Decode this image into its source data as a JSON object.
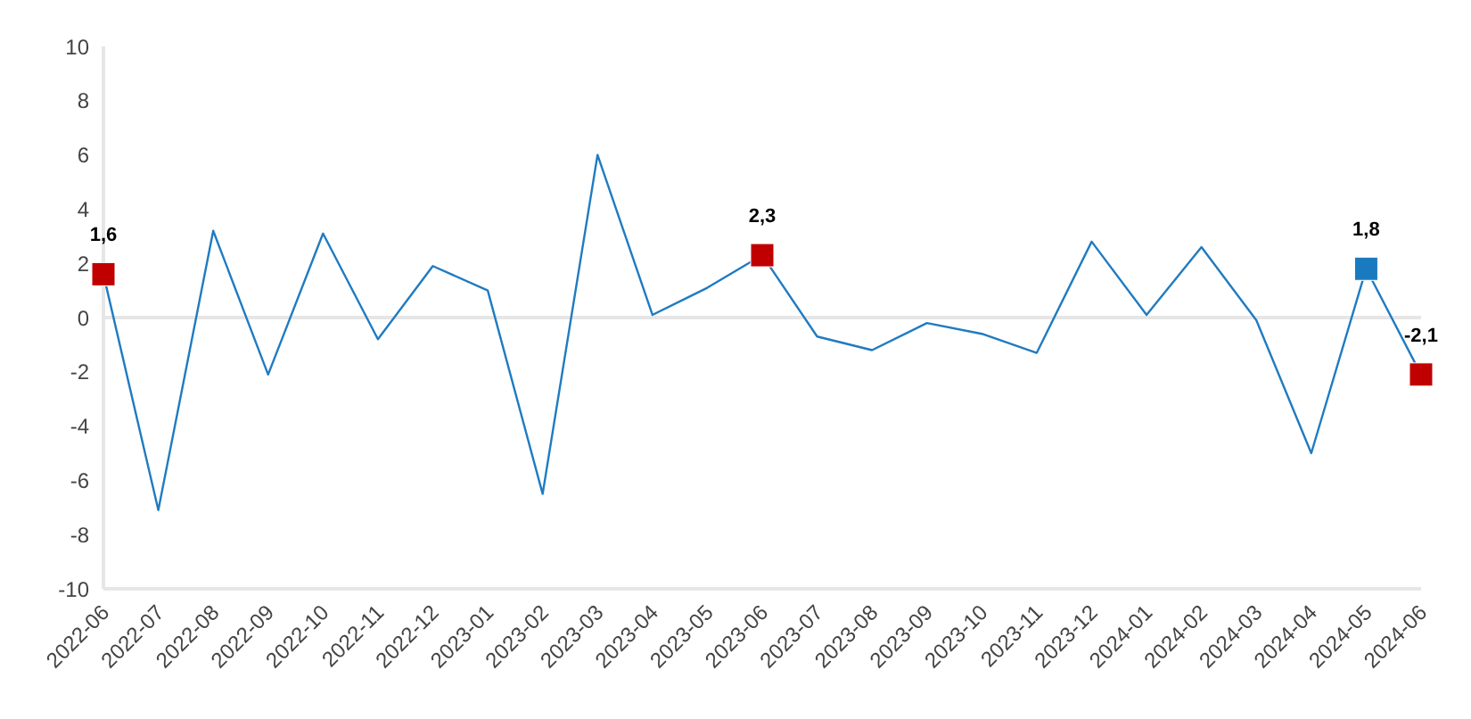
{
  "chart_data": {
    "type": "line",
    "categories": [
      "2022-06",
      "2022-07",
      "2022-08",
      "2022-09",
      "2022-10",
      "2022-11",
      "2022-12",
      "2023-01",
      "2023-02",
      "2023-03",
      "2023-04",
      "2023-05",
      "2023-06",
      "2023-07",
      "2023-08",
      "2023-09",
      "2023-10",
      "2023-11",
      "2023-12",
      "2024-01",
      "2024-02",
      "2024-03",
      "2024-04",
      "2024-05",
      "2024-06"
    ],
    "series": [
      {
        "color": "#1f7bc1",
        "values": [
          1.6,
          -7.1,
          3.2,
          -2.1,
          3.1,
          -0.8,
          1.9,
          1.0,
          -6.5,
          6.0,
          0.1,
          1.1,
          2.3,
          -0.7,
          -1.2,
          -0.2,
          -0.6,
          -1.3,
          2.8,
          0.1,
          2.6,
          -0.1,
          -5.0,
          1.8,
          -2.1
        ]
      },
      {
        "type": "scatter",
        "marker": "square",
        "values": [
          1.6,
          null,
          null,
          null,
          null,
          null,
          null,
          null,
          null,
          null,
          null,
          null,
          2.3,
          null,
          null,
          null,
          null,
          null,
          null,
          null,
          null,
          null,
          null,
          1.8,
          -2.1
        ],
        "colors": [
          "#c00000",
          null,
          null,
          null,
          null,
          null,
          null,
          null,
          null,
          null,
          null,
          null,
          "#c00000",
          null,
          null,
          null,
          null,
          null,
          null,
          null,
          null,
          null,
          null,
          "#1a7abf",
          "#c00000"
        ],
        "value_labels": [
          "1,6",
          null,
          null,
          null,
          null,
          null,
          null,
          null,
          null,
          null,
          null,
          null,
          "2,3",
          null,
          null,
          null,
          null,
          null,
          null,
          null,
          null,
          null,
          null,
          "1,8",
          "-2,1"
        ]
      }
    ],
    "ylim": [
      -10,
      10
    ],
    "yticks": [
      -10,
      -8,
      -6,
      -4,
      -2,
      0,
      2,
      4,
      6,
      8,
      10
    ],
    "grid": false,
    "legend": false,
    "ref_lines": [
      {
        "axis": "y",
        "value": 0,
        "color": "#e6e6e6"
      }
    ]
  }
}
